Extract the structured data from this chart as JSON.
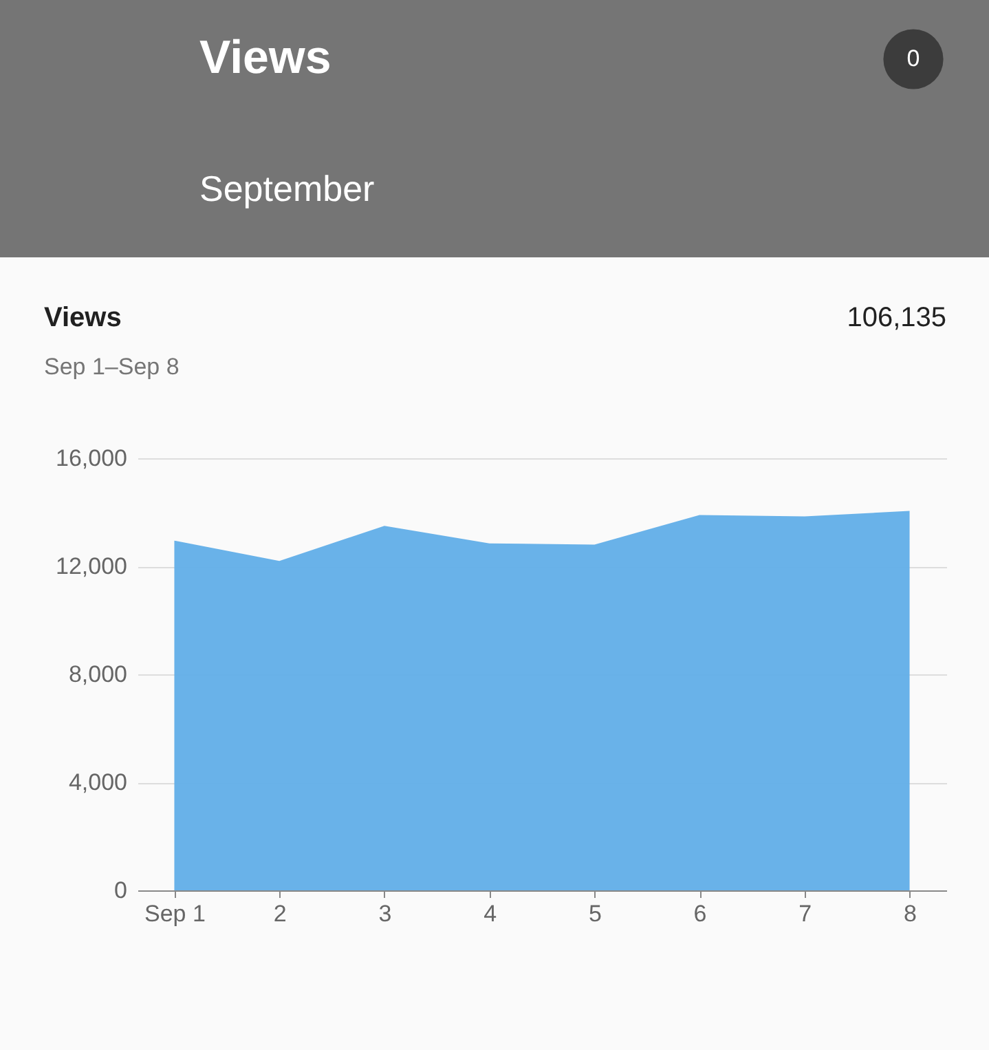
{
  "chart_data": {
    "type": "area",
    "title": "Views",
    "subtitle": "Sep 1–Sep 8",
    "annotations": [
      "Views",
      "September",
      "0",
      "106,135"
    ],
    "categories": [
      "Sep 1",
      "2",
      "3",
      "4",
      "5",
      "6",
      "7",
      "8"
    ],
    "values": [
      12950,
      12200,
      13500,
      12850,
      12800,
      13900,
      13850,
      14050
    ],
    "color": "#64b0e8",
    "ylim": [
      0,
      16000
    ],
    "yticks": [
      0,
      {
        "value": 4000,
        "label": "4,000"
      },
      {
        "value": 8000,
        "label": "8,000"
      },
      {
        "value": 12000,
        "label": "12,000"
      },
      {
        "value": 16000,
        "label": "16,000"
      }
    ],
    "grid": "y"
  }
}
